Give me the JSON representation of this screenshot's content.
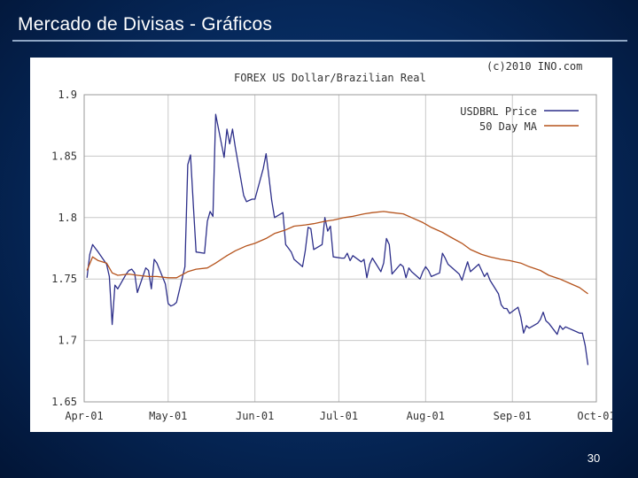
{
  "slide": {
    "title": "Mercado de Divisas - Gráficos",
    "page_number": "30"
  },
  "colors": {
    "price": "#2d2f8a",
    "ma": "#b5531c",
    "grid": "#c8c8c8",
    "axis_text": "#333333"
  },
  "chart_data": {
    "type": "line",
    "title": "FOREX US Dollar/Brazilian Real",
    "copyright": "(c)2010 INO.com",
    "x_type": "date",
    "xlim": [
      "2001-04-01",
      "2001-10-01"
    ],
    "ylim": [
      1.65,
      1.9
    ],
    "x_ticks": [
      {
        "date": "2001-04-01",
        "label": "Apr-01"
      },
      {
        "date": "2001-05-01",
        "label": "May-01"
      },
      {
        "date": "2001-06-01",
        "label": "Jun-01"
      },
      {
        "date": "2001-07-01",
        "label": "Jul-01"
      },
      {
        "date": "2001-08-01",
        "label": "Aug-01"
      },
      {
        "date": "2001-09-01",
        "label": "Sep-01"
      },
      {
        "date": "2001-10-01",
        "label": "Oct-01"
      }
    ],
    "y_ticks": [
      {
        "value": 1.65,
        "label": "1.65"
      },
      {
        "value": 1.7,
        "label": "1.7"
      },
      {
        "value": 1.75,
        "label": "1.75"
      },
      {
        "value": 1.8,
        "label": "1.8"
      },
      {
        "value": 1.85,
        "label": "1.85"
      },
      {
        "value": 1.9,
        "label": "1.9"
      }
    ],
    "grid": true,
    "legend_position": "top-right",
    "series": [
      {
        "name": "USDBRL Price",
        "color": "#2d2f8a",
        "points": [
          [
            "2001-04-02",
            1.751
          ],
          [
            "2001-04-03",
            1.77
          ],
          [
            "2001-04-04",
            1.778
          ],
          [
            "2001-04-05",
            1.775
          ],
          [
            "2001-04-06",
            1.772
          ],
          [
            "2001-04-09",
            1.762
          ],
          [
            "2001-04-10",
            1.752
          ],
          [
            "2001-04-11",
            1.713
          ],
          [
            "2001-04-12",
            1.745
          ],
          [
            "2001-04-13",
            1.742
          ],
          [
            "2001-04-16",
            1.754
          ],
          [
            "2001-04-17",
            1.757
          ],
          [
            "2001-04-18",
            1.758
          ],
          [
            "2001-04-19",
            1.755
          ],
          [
            "2001-04-20",
            1.739
          ],
          [
            "2001-04-23",
            1.759
          ],
          [
            "2001-04-24",
            1.757
          ],
          [
            "2001-04-25",
            1.742
          ],
          [
            "2001-04-26",
            1.766
          ],
          [
            "2001-04-27",
            1.763
          ],
          [
            "2001-04-30",
            1.746
          ],
          [
            "2001-05-01",
            1.73
          ],
          [
            "2001-05-02",
            1.728
          ],
          [
            "2001-05-03",
            1.729
          ],
          [
            "2001-05-04",
            1.731
          ],
          [
            "2001-05-07",
            1.76
          ],
          [
            "2001-05-08",
            1.843
          ],
          [
            "2001-05-09",
            1.851
          ],
          [
            "2001-05-10",
            1.81
          ],
          [
            "2001-05-11",
            1.772
          ],
          [
            "2001-05-14",
            1.771
          ],
          [
            "2001-05-15",
            1.797
          ],
          [
            "2001-05-16",
            1.805
          ],
          [
            "2001-05-17",
            1.801
          ],
          [
            "2001-05-18",
            1.884
          ],
          [
            "2001-05-21",
            1.849
          ],
          [
            "2001-05-22",
            1.872
          ],
          [
            "2001-05-23",
            1.86
          ],
          [
            "2001-05-24",
            1.872
          ],
          [
            "2001-05-25",
            1.857
          ],
          [
            "2001-05-28",
            1.818
          ],
          [
            "2001-05-29",
            1.813
          ],
          [
            "2001-05-30",
            1.814
          ],
          [
            "2001-05-31",
            1.815
          ],
          [
            "2001-06-01",
            1.815
          ],
          [
            "2001-06-04",
            1.84
          ],
          [
            "2001-06-05",
            1.852
          ],
          [
            "2001-06-06",
            1.833
          ],
          [
            "2001-06-07",
            1.814
          ],
          [
            "2001-06-08",
            1.8
          ],
          [
            "2001-06-11",
            1.804
          ],
          [
            "2001-06-12",
            1.778
          ],
          [
            "2001-06-13",
            1.775
          ],
          [
            "2001-06-14",
            1.772
          ],
          [
            "2001-06-15",
            1.766
          ],
          [
            "2001-06-18",
            1.76
          ],
          [
            "2001-06-19",
            1.773
          ],
          [
            "2001-06-20",
            1.792
          ],
          [
            "2001-06-21",
            1.791
          ],
          [
            "2001-06-22",
            1.774
          ],
          [
            "2001-06-25",
            1.778
          ],
          [
            "2001-06-26",
            1.8
          ],
          [
            "2001-06-27",
            1.789
          ],
          [
            "2001-06-28",
            1.793
          ],
          [
            "2001-06-29",
            1.768
          ],
          [
            "2001-07-02",
            1.767
          ],
          [
            "2001-07-03",
            1.767
          ],
          [
            "2001-07-04",
            1.771
          ],
          [
            "2001-07-05",
            1.765
          ],
          [
            "2001-07-06",
            1.769
          ],
          [
            "2001-07-09",
            1.764
          ],
          [
            "2001-07-10",
            1.766
          ],
          [
            "2001-07-11",
            1.751
          ],
          [
            "2001-07-12",
            1.762
          ],
          [
            "2001-07-13",
            1.767
          ],
          [
            "2001-07-16",
            1.756
          ],
          [
            "2001-07-17",
            1.763
          ],
          [
            "2001-07-18",
            1.783
          ],
          [
            "2001-07-19",
            1.778
          ],
          [
            "2001-07-20",
            1.754
          ],
          [
            "2001-07-23",
            1.762
          ],
          [
            "2001-07-24",
            1.76
          ],
          [
            "2001-07-25",
            1.751
          ],
          [
            "2001-07-26",
            1.759
          ],
          [
            "2001-07-27",
            1.756
          ],
          [
            "2001-07-30",
            1.75
          ],
          [
            "2001-07-31",
            1.756
          ],
          [
            "2001-08-01",
            1.76
          ],
          [
            "2001-08-02",
            1.757
          ],
          [
            "2001-08-03",
            1.752
          ],
          [
            "2001-08-06",
            1.755
          ],
          [
            "2001-08-07",
            1.771
          ],
          [
            "2001-08-08",
            1.767
          ],
          [
            "2001-08-09",
            1.762
          ],
          [
            "2001-08-10",
            1.76
          ],
          [
            "2001-08-13",
            1.754
          ],
          [
            "2001-08-14",
            1.749
          ],
          [
            "2001-08-15",
            1.757
          ],
          [
            "2001-08-16",
            1.764
          ],
          [
            "2001-08-17",
            1.756
          ],
          [
            "2001-08-20",
            1.762
          ],
          [
            "2001-08-21",
            1.757
          ],
          [
            "2001-08-22",
            1.752
          ],
          [
            "2001-08-23",
            1.755
          ],
          [
            "2001-08-24",
            1.749
          ],
          [
            "2001-08-27",
            1.738
          ],
          [
            "2001-08-28",
            1.729
          ],
          [
            "2001-08-29",
            1.726
          ],
          [
            "2001-08-30",
            1.726
          ],
          [
            "2001-08-31",
            1.722
          ],
          [
            "2001-09-03",
            1.727
          ],
          [
            "2001-09-04",
            1.719
          ],
          [
            "2001-09-05",
            1.706
          ],
          [
            "2001-09-06",
            1.712
          ],
          [
            "2001-09-07",
            1.71
          ],
          [
            "2001-09-10",
            1.714
          ],
          [
            "2001-09-11",
            1.717
          ],
          [
            "2001-09-12",
            1.723
          ],
          [
            "2001-09-13",
            1.716
          ],
          [
            "2001-09-14",
            1.714
          ],
          [
            "2001-09-17",
            1.705
          ],
          [
            "2001-09-18",
            1.712
          ],
          [
            "2001-09-19",
            1.709
          ],
          [
            "2001-09-20",
            1.711
          ],
          [
            "2001-09-21",
            1.71
          ],
          [
            "2001-09-24",
            1.707
          ],
          [
            "2001-09-25",
            1.706
          ],
          [
            "2001-09-26",
            1.706
          ],
          [
            "2001-09-27",
            1.696
          ],
          [
            "2001-09-28",
            1.68
          ]
        ]
      },
      {
        "name": "50 Day MA",
        "color": "#b5531c",
        "points": [
          [
            "2001-04-02",
            1.757
          ],
          [
            "2001-04-04",
            1.768
          ],
          [
            "2001-04-06",
            1.765
          ],
          [
            "2001-04-09",
            1.763
          ],
          [
            "2001-04-11",
            1.755
          ],
          [
            "2001-04-13",
            1.753
          ],
          [
            "2001-04-17",
            1.754
          ],
          [
            "2001-04-20",
            1.753
          ],
          [
            "2001-04-24",
            1.752
          ],
          [
            "2001-04-27",
            1.752
          ],
          [
            "2001-05-01",
            1.751
          ],
          [
            "2001-05-04",
            1.751
          ],
          [
            "2001-05-08",
            1.756
          ],
          [
            "2001-05-11",
            1.758
          ],
          [
            "2001-05-15",
            1.759
          ],
          [
            "2001-05-18",
            1.763
          ],
          [
            "2001-05-22",
            1.769
          ],
          [
            "2001-05-25",
            1.773
          ],
          [
            "2001-05-29",
            1.777
          ],
          [
            "2001-06-01",
            1.779
          ],
          [
            "2001-06-05",
            1.783
          ],
          [
            "2001-06-08",
            1.787
          ],
          [
            "2001-06-12",
            1.79
          ],
          [
            "2001-06-15",
            1.793
          ],
          [
            "2001-06-19",
            1.794
          ],
          [
            "2001-06-22",
            1.795
          ],
          [
            "2001-06-26",
            1.797
          ],
          [
            "2001-06-29",
            1.798
          ],
          [
            "2001-07-03",
            1.8
          ],
          [
            "2001-07-06",
            1.801
          ],
          [
            "2001-07-10",
            1.803
          ],
          [
            "2001-07-13",
            1.804
          ],
          [
            "2001-07-17",
            1.805
          ],
          [
            "2001-07-20",
            1.804
          ],
          [
            "2001-07-24",
            1.803
          ],
          [
            "2001-07-27",
            1.8
          ],
          [
            "2001-07-31",
            1.796
          ],
          [
            "2001-08-03",
            1.792
          ],
          [
            "2001-08-07",
            1.788
          ],
          [
            "2001-08-10",
            1.784
          ],
          [
            "2001-08-14",
            1.779
          ],
          [
            "2001-08-17",
            1.774
          ],
          [
            "2001-08-21",
            1.77
          ],
          [
            "2001-08-24",
            1.768
          ],
          [
            "2001-08-28",
            1.766
          ],
          [
            "2001-08-31",
            1.765
          ],
          [
            "2001-09-04",
            1.763
          ],
          [
            "2001-09-07",
            1.76
          ],
          [
            "2001-09-11",
            1.757
          ],
          [
            "2001-09-14",
            1.753
          ],
          [
            "2001-09-18",
            1.75
          ],
          [
            "2001-09-21",
            1.747
          ],
          [
            "2001-09-25",
            1.743
          ],
          [
            "2001-09-28",
            1.738
          ]
        ]
      }
    ]
  }
}
